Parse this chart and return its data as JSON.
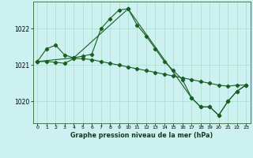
{
  "title": "Graphe pression niveau de la mer (hPa)",
  "bg_color": "#cdf0f0",
  "grid_color": "#aaddcc",
  "line_color": "#1a5e20",
  "xlim": [
    -0.5,
    23.5
  ],
  "ylim": [
    1019.4,
    1022.75
  ],
  "yticks": [
    1020,
    1021,
    1022
  ],
  "xticks": [
    0,
    1,
    2,
    3,
    4,
    5,
    6,
    7,
    8,
    9,
    10,
    11,
    12,
    13,
    14,
    15,
    16,
    17,
    18,
    19,
    20,
    21,
    22,
    23
  ],
  "line1_x": [
    0,
    1,
    2,
    3,
    4,
    5,
    6,
    7,
    8,
    9,
    10,
    11,
    12,
    13,
    14,
    15,
    16,
    17,
    18,
    19,
    20,
    21,
    22,
    23
  ],
  "line1_y": [
    1021.1,
    1021.45,
    1021.55,
    1021.28,
    1021.2,
    1021.25,
    1021.3,
    1022.0,
    1022.28,
    1022.52,
    1022.55,
    1022.1,
    1021.8,
    1021.45,
    1021.1,
    1020.85,
    1020.6,
    1020.1,
    1019.85,
    1019.85,
    1019.62,
    1020.0,
    1020.28,
    1020.45
  ],
  "line2_x": [
    0,
    1,
    2,
    3,
    4,
    5,
    6,
    7,
    8,
    9,
    10,
    11,
    12,
    13,
    14,
    15,
    16,
    17,
    18,
    19,
    20,
    21,
    22,
    23
  ],
  "line2_y": [
    1021.1,
    1021.1,
    1021.08,
    1021.05,
    1021.18,
    1021.18,
    1021.15,
    1021.1,
    1021.05,
    1021.0,
    1020.95,
    1020.9,
    1020.85,
    1020.8,
    1020.75,
    1020.7,
    1020.65,
    1020.6,
    1020.55,
    1020.5,
    1020.45,
    1020.42,
    1020.45,
    1020.45
  ],
  "line3_x": [
    0,
    4,
    10,
    17,
    18,
    19,
    20,
    21,
    22,
    23
  ],
  "line3_y": [
    1021.1,
    1021.2,
    1022.55,
    1020.1,
    1019.85,
    1019.85,
    1019.62,
    1020.0,
    1020.28,
    1020.45
  ]
}
